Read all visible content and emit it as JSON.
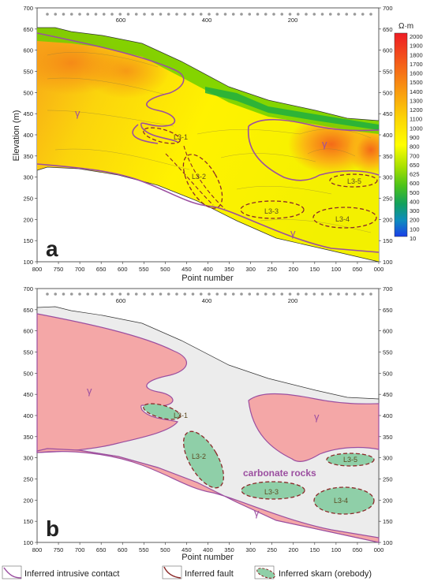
{
  "panel_a": {
    "label": "a",
    "y_axis_label": "Elevation (m)",
    "x_axis_label": "Point number",
    "left_ticks": [
      "700",
      "650",
      "600",
      "550",
      "500",
      "450",
      "400",
      "350",
      "300",
      "250",
      "200",
      "150",
      "100"
    ],
    "right_ticks": [
      "700",
      "650",
      "600",
      "550",
      "500",
      "450",
      "400",
      "350",
      "300",
      "250",
      "200",
      "150",
      "100"
    ],
    "bottom_ticks": [
      "800",
      "750",
      "700",
      "650",
      "600",
      "550",
      "500",
      "450",
      "400",
      "350",
      "300",
      "250",
      "200",
      "150",
      "100",
      "050",
      "000"
    ],
    "top_ticks": [
      "600",
      "400",
      "200"
    ],
    "gamma_label": "γ",
    "orebodies": [
      "L3-1",
      "L3-2",
      "L3-3",
      "L3-4",
      "L3-5"
    ],
    "colorbar": {
      "unit": "Ω·m",
      "levels": [
        "2000",
        "1900",
        "1800",
        "1700",
        "1600",
        "1500",
        "1400",
        "1300",
        "1200",
        "1100",
        "1000",
        "900",
        "800",
        "700",
        "650",
        "625",
        "600",
        "500",
        "400",
        "300",
        "200",
        "100",
        "10"
      ],
      "colors": [
        "#ee1c24",
        "#f03021",
        "#f2451d",
        "#f45a1a",
        "#f66f16",
        "#f88413",
        "#f99810",
        "#faad0c",
        "#fbc109",
        "#fcd505",
        "#fde902",
        "#fef100",
        "#ffff00",
        "#e6f500",
        "#c8ec00",
        "#a5e000",
        "#7ed300",
        "#4cc31a",
        "#26b03e",
        "#12a05e",
        "#0e8dbd",
        "#1666e0",
        "#1a3fe8"
      ]
    },
    "colors": {
      "intrusive_contact": "#9b4fa0",
      "fault": "#8b2a2a",
      "skarn_outline": "#8b2a2a"
    }
  },
  "panel_b": {
    "label": "b",
    "x_axis_label": "Point number",
    "left_ticks": [
      "700",
      "650",
      "600",
      "550",
      "500",
      "450",
      "400",
      "350",
      "300",
      "250",
      "200",
      "150",
      "100"
    ],
    "right_ticks": [
      "700",
      "650",
      "600",
      "550",
      "500",
      "450",
      "400",
      "350",
      "300",
      "250",
      "200",
      "150",
      "100"
    ],
    "bottom_ticks": [
      "800",
      "750",
      "700",
      "650",
      "600",
      "550",
      "500",
      "450",
      "400",
      "350",
      "300",
      "250",
      "200",
      "150",
      "100",
      "050",
      "000"
    ],
    "top_ticks": [
      "600",
      "400",
      "200"
    ],
    "gamma_label": "γ",
    "carbonate_label": "carbonate rocks",
    "orebodies": [
      "L3-1",
      "L3-2",
      "L3-3",
      "L3-4",
      "L3-5"
    ],
    "colors": {
      "intrusion_fill": "#f4a7a7",
      "carbonate_fill": "#ececec",
      "skarn_fill": "#8fcfa8"
    }
  },
  "legend": {
    "intrusive_contact": "Inferred intrusive contact",
    "fault": "Inferred fault",
    "skarn": "Inferred skarn (orebody)"
  }
}
